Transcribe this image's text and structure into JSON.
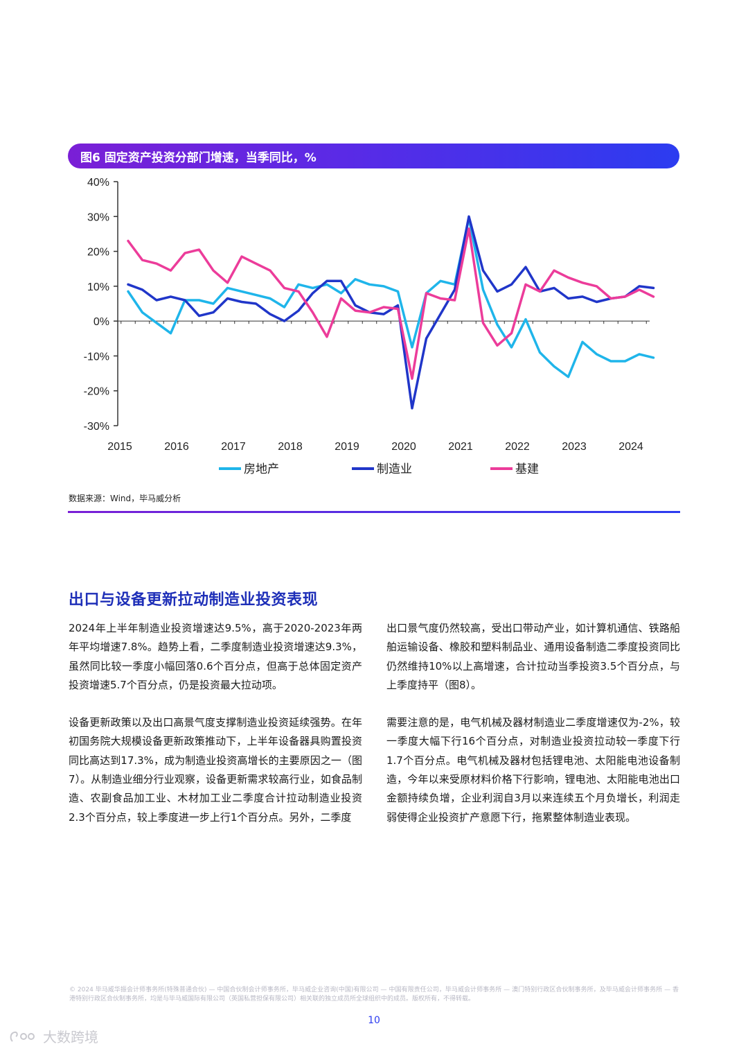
{
  "figure": {
    "title": "图6 固定资产投资分部门增速，当季同比，%",
    "source": "数据来源：Wind，毕马威分析"
  },
  "chart_data": {
    "type": "line",
    "title": "图6 固定资产投资分部门增速，当季同比，%",
    "xlabel": "",
    "ylabel": "",
    "ylim": [
      -30,
      40
    ],
    "yticks": [
      40,
      30,
      20,
      10,
      0,
      -10,
      -20,
      -30
    ],
    "ytick_labels": [
      "40%",
      "30%",
      "20%",
      "10%",
      "0%",
      "-10%",
      "-20%",
      "-30%"
    ],
    "xticks": [
      "2015",
      "2016",
      "2017",
      "2018",
      "2019",
      "2020",
      "2021",
      "2022",
      "2023",
      "2024"
    ],
    "x_start_year": 2015,
    "points_per_year": 4,
    "grid": false,
    "legend_position": "bottom",
    "series": [
      {
        "name": "房地产",
        "color": "#1fb5ea",
        "values": [
          8.5,
          2.5,
          -0.5,
          -3.5,
          6.0,
          6.0,
          5.0,
          9.5,
          8.5,
          7.5,
          6.5,
          4.0,
          10.5,
          9.5,
          10.5,
          8.0,
          12.0,
          10.5,
          10.0,
          8.5,
          -7.5,
          8.0,
          11.5,
          10.5,
          29.5,
          9.0,
          -1.0,
          -7.5,
          0.5,
          -9.0,
          -13.0,
          -16.0,
          -6.0,
          -9.5,
          -11.5,
          -11.5,
          -9.5,
          -10.5
        ]
      },
      {
        "name": "制造业",
        "color": "#2036c9",
        "values": [
          10.5,
          9.0,
          6.0,
          7.0,
          6.0,
          1.5,
          2.5,
          6.5,
          5.5,
          5.0,
          2.0,
          0.0,
          3.0,
          8.0,
          11.5,
          11.5,
          4.5,
          2.5,
          2.0,
          4.5,
          -25.0,
          -5.0,
          2.0,
          9.0,
          30.0,
          14.5,
          8.5,
          10.5,
          15.5,
          8.5,
          9.5,
          6.5,
          7.0,
          5.5,
          6.5,
          7.0,
          10.0,
          9.5
        ]
      },
      {
        "name": "基建",
        "color": "#ec3c9a",
        "values": [
          23.0,
          17.5,
          16.5,
          14.5,
          19.5,
          20.5,
          14.5,
          11.0,
          18.5,
          16.5,
          14.5,
          9.5,
          8.5,
          2.5,
          -4.5,
          6.5,
          3.0,
          2.5,
          4.0,
          3.5,
          -16.5,
          8.0,
          6.5,
          6.0,
          26.5,
          -0.5,
          -7.0,
          -3.5,
          10.5,
          8.5,
          14.5,
          12.5,
          11.0,
          10.0,
          6.5,
          7.0,
          9.0,
          7.0
        ]
      }
    ]
  },
  "section": {
    "title": "出口与设备更新拉动制造业投资表现",
    "left_paragraphs": [
      "2024年上半年制造业投资增速达9.5%，高于2020-2023年两年平均增速7.8%。趋势上看，二季度制造业投资增速达9.3%，虽然同比较一季度小幅回落0.6个百分点，但高于总体固定资产投资增速5.7个百分点，仍是投资最大拉动项。",
      "设备更新政策以及出口高景气度支撑制造业投资延续强势。在年初国务院大规模设备更新政策推动下，上半年设备器具购置投资同比高达到17.3%，成为制造业投资高增长的主要原因之一（图7）。从制造业细分行业观察，设备更新需求较高行业，如食品制造、农副食品加工业、木材加工业二季度合计拉动制造业投资2.3个百分点，较上季度进一步上行1个百分点。另外，二季度"
    ],
    "right_paragraphs": [
      "出口景气度仍然较高，受出口带动产业，如计算机通信、铁路船舶运输设备、橡胶和塑料制品业、通用设备制造二季度投资同比仍然维持10%以上高增速，合计拉动当季投资3.5个百分点，与上季度持平（图8）。",
      "需要注意的是，电气机械及器材制造业二季度增速仅为-2%，较一季度大幅下行16个百分点，对制造业投资拉动较一季度下行1.7个百分点。电气机械及器材包括锂电池、太阳能电池设备制造，今年以来受原材料价格下行影响，锂电池、太阳能电池出口金额持续负增，企业利润自3月以来连续五个月负增长，利润走弱使得企业投资扩产意愿下行，拖累整体制造业表现。"
    ]
  },
  "footer": {
    "copyright": "© 2024 毕马威华振会计师事务所(特殊普通合伙) — 中国合伙制会计师事务所，毕马威企业咨询(中国)有限公司 — 中国有限责任公司，毕马威会计师事务所 — 澳门特别行政区合伙制事务所，及毕马威会计师事务所 — 香港特别行政区合伙制事务所，均是与毕马威国际有限公司（英国私营担保有限公司）相关联的独立成员所全球组织中的成员。版权所有，不得转载。",
    "page_number": "10",
    "watermark": "大数跨境"
  }
}
